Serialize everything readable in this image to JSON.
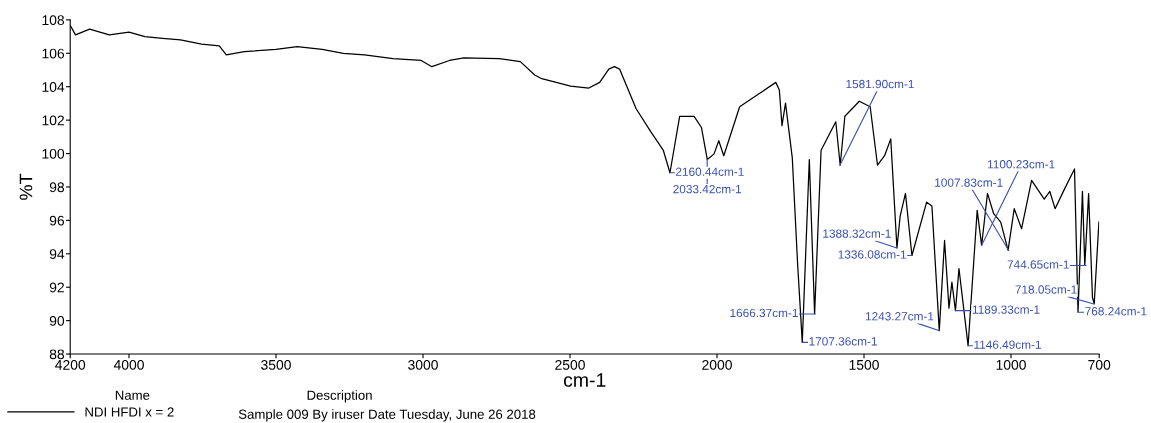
{
  "chart_data": {
    "type": "line",
    "xlabel": "cm-1",
    "ylabel": "%T",
    "xlim": [
      4200,
      700
    ],
    "xticks": [
      4200,
      4000,
      3500,
      3000,
      2500,
      2000,
      1500,
      1000,
      700
    ],
    "ylim": [
      88,
      108
    ],
    "yticks": [
      88,
      90,
      92,
      94,
      96,
      98,
      100,
      102,
      104,
      106,
      108
    ],
    "grid": false,
    "legend": "bottom left",
    "legend_title": "Name",
    "series": [
      {
        "name": "NDI HFDI x = 2",
        "color": "#000000",
        "x": [
          4200,
          4182,
          4134,
          4067,
          4000,
          3946,
          3886,
          3825,
          3753,
          3693,
          3669,
          3608,
          3500,
          3428,
          3343,
          3271,
          3199,
          3102,
          3006,
          2970,
          2910,
          2861,
          2741,
          2669,
          2620,
          2596,
          2498,
          2436,
          2399,
          2368,
          2349,
          2331,
          2275,
          2226,
          2183,
          2160,
          2127,
          2078,
          2053,
          2033,
          2010,
          1994,
          1977,
          1923,
          1856,
          1800,
          1788,
          1779,
          1767,
          1744,
          1726,
          1710,
          1686,
          1668,
          1646,
          1596,
          1581,
          1565,
          1516,
          1479,
          1454,
          1430,
          1409,
          1388,
          1377,
          1359,
          1337,
          1287,
          1269,
          1244,
          1226,
          1211,
          1201,
          1189,
          1177,
          1146,
          1115,
          1100,
          1080,
          1059,
          1035,
          1010,
          989,
          964,
          930,
          887,
          868,
          850,
          819,
          784,
          772,
          757,
          749,
          736,
          723,
          717,
          701
        ],
        "values": [
          107.67,
          107.1,
          107.45,
          107.1,
          107.27,
          107.0,
          106.9,
          106.8,
          106.55,
          106.45,
          105.9,
          106.1,
          106.23,
          106.4,
          106.23,
          106.0,
          105.9,
          105.68,
          105.57,
          105.2,
          105.57,
          105.72,
          105.68,
          105.5,
          104.7,
          104.48,
          104.04,
          103.92,
          104.26,
          105.05,
          105.2,
          105.05,
          102.68,
          101.33,
          100.21,
          98.85,
          102.23,
          102.23,
          101.56,
          99.64,
          99.98,
          100.77,
          99.87,
          102.8,
          103.59,
          104.26,
          103.8,
          101.67,
          103.02,
          99.76,
          93.45,
          88.7,
          99.64,
          90.4,
          100.2,
          101.9,
          99.3,
          102.23,
          103.13,
          102.8,
          99.3,
          99.87,
          100.88,
          94.35,
          96.26,
          97.62,
          93.9,
          97.09,
          96.86,
          89.4,
          94.8,
          90.75,
          92.3,
          90.6,
          93.12,
          88.5,
          96.6,
          94.5,
          97.62,
          96.4,
          95.9,
          94.2,
          96.7,
          95.5,
          98.4,
          97.27,
          97.73,
          96.7,
          97.84,
          99.08,
          90.5,
          97.73,
          93.3,
          97.6,
          91.4,
          91.0,
          95.9
        ]
      }
    ],
    "annotations": [
      "Description",
      "Sample 009 By iruser Date Tuesday, June 26 2018",
      {
        "text": "2160.44cm-1",
        "x": 2160.44,
        "y": 98.85
      },
      {
        "text": "2033.42cm-1",
        "x": 2033.42,
        "y": 99.64
      },
      {
        "text": "1707.36cm-1",
        "x": 1707.36,
        "y": 88.7
      },
      {
        "text": "1666.37cm-1",
        "x": 1666.37,
        "y": 90.4
      },
      {
        "text": "1581.90cm-1",
        "x": 1581.9,
        "y": 99.3
      },
      {
        "text": "1388.32cm-1",
        "x": 1388.32,
        "y": 94.35
      },
      {
        "text": "1336.08cm-1",
        "x": 1336.08,
        "y": 93.9
      },
      {
        "text": "1243.27cm-1",
        "x": 1243.27,
        "y": 89.4
      },
      {
        "text": "1189.33cm-1",
        "x": 1189.33,
        "y": 90.6
      },
      {
        "text": "1146.49cm-1",
        "x": 1146.49,
        "y": 88.5
      },
      {
        "text": "1100.23cm-1",
        "x": 1100.23,
        "y": 94.5
      },
      {
        "text": "1007.83cm-1",
        "x": 1007.83,
        "y": 94.2
      },
      {
        "text": "768.24cm-1",
        "x": 768.24,
        "y": 90.5
      },
      {
        "text": "744.65cm-1",
        "x": 744.65,
        "y": 93.3
      },
      {
        "text": "718.05cm-1",
        "x": 718.05,
        "y": 91.0
      }
    ]
  }
}
